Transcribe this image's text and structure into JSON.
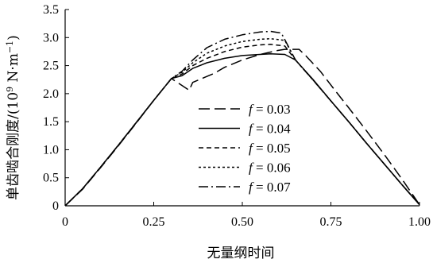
{
  "chart_data": {
    "type": "line",
    "title": "",
    "xlabel": "无量纲时间",
    "ylabel_main": "单齿啮合刚度/(10",
    "ylabel_exp": "9",
    "ylabel_unit": " N·m",
    "ylabel_unit_exp": "−1",
    "ylabel_close": ")",
    "xlim": [
      0,
      1
    ],
    "ylim": [
      0,
      3.5
    ],
    "x_ticks": [
      "0",
      "0.25",
      "0.50",
      "0.75",
      "1.00"
    ],
    "x_tick_values": [
      0,
      0.25,
      0.5,
      0.75,
      1.0
    ],
    "y_ticks": [
      "0",
      "0.5",
      "1.0",
      "1.5",
      "2.0",
      "2.5",
      "3.0",
      "3.5"
    ],
    "y_tick_values": [
      0,
      0.5,
      1.0,
      1.5,
      2.0,
      2.5,
      3.0,
      3.5
    ],
    "grid": false,
    "legend_placement": "center",
    "series": [
      {
        "name": "f = 0.03",
        "legend_var": "f",
        "legend_rest": " = 0.03",
        "dash": "14,6",
        "points": [
          [
            0,
            0
          ],
          [
            0.05,
            0.3
          ],
          [
            0.1,
            0.68
          ],
          [
            0.15,
            1.07
          ],
          [
            0.2,
            1.47
          ],
          [
            0.25,
            1.88
          ],
          [
            0.3,
            2.27
          ],
          [
            0.35,
            2.06
          ],
          [
            0.36,
            2.2
          ],
          [
            0.39,
            2.28
          ],
          [
            0.42,
            2.36
          ],
          [
            0.45,
            2.47
          ],
          [
            0.5,
            2.6
          ],
          [
            0.55,
            2.7
          ],
          [
            0.6,
            2.77
          ],
          [
            0.62,
            2.79
          ],
          [
            0.66,
            2.79
          ],
          [
            0.68,
            2.67
          ],
          [
            0.72,
            2.4
          ],
          [
            0.76,
            2.07
          ],
          [
            0.8,
            1.75
          ],
          [
            0.85,
            1.34
          ],
          [
            0.9,
            0.92
          ],
          [
            0.95,
            0.48
          ],
          [
            1.0,
            0.02
          ]
        ]
      },
      {
        "name": "f = 0.04",
        "legend_var": "f",
        "legend_rest": " = 0.04",
        "dash": "",
        "points": [
          [
            0,
            0
          ],
          [
            0.05,
            0.31
          ],
          [
            0.1,
            0.69
          ],
          [
            0.15,
            1.08
          ],
          [
            0.2,
            1.48
          ],
          [
            0.25,
            1.88
          ],
          [
            0.3,
            2.27
          ],
          [
            0.33,
            2.32
          ],
          [
            0.36,
            2.45
          ],
          [
            0.4,
            2.55
          ],
          [
            0.45,
            2.63
          ],
          [
            0.5,
            2.68
          ],
          [
            0.55,
            2.7
          ],
          [
            0.58,
            2.71
          ],
          [
            0.62,
            2.7
          ],
          [
            0.65,
            2.6
          ],
          [
            0.7,
            2.25
          ],
          [
            0.75,
            1.87
          ],
          [
            0.8,
            1.5
          ],
          [
            0.85,
            1.12
          ],
          [
            0.9,
            0.75
          ],
          [
            0.95,
            0.38
          ],
          [
            1.0,
            0.02
          ]
        ]
      },
      {
        "name": "f = 0.05",
        "legend_var": "f",
        "legend_rest": " = 0.05",
        "dash": "6,4",
        "points": [
          [
            0,
            0
          ],
          [
            0.05,
            0.31
          ],
          [
            0.1,
            0.69
          ],
          [
            0.15,
            1.08
          ],
          [
            0.2,
            1.48
          ],
          [
            0.25,
            1.88
          ],
          [
            0.3,
            2.27
          ],
          [
            0.33,
            2.35
          ],
          [
            0.36,
            2.5
          ],
          [
            0.4,
            2.63
          ],
          [
            0.45,
            2.75
          ],
          [
            0.5,
            2.83
          ],
          [
            0.55,
            2.87
          ],
          [
            0.58,
            2.88
          ],
          [
            0.62,
            2.85
          ],
          [
            0.65,
            2.6
          ],
          [
            0.7,
            2.24
          ],
          [
            0.75,
            1.87
          ],
          [
            0.8,
            1.5
          ],
          [
            0.85,
            1.12
          ],
          [
            0.9,
            0.75
          ],
          [
            0.95,
            0.38
          ],
          [
            1.0,
            0.02
          ]
        ]
      },
      {
        "name": "f = 0.06",
        "legend_var": "f",
        "legend_rest": " = 0.06",
        "dash": "3,3",
        "points": [
          [
            0,
            0
          ],
          [
            0.05,
            0.31
          ],
          [
            0.1,
            0.69
          ],
          [
            0.15,
            1.08
          ],
          [
            0.2,
            1.48
          ],
          [
            0.25,
            1.88
          ],
          [
            0.3,
            2.27
          ],
          [
            0.33,
            2.38
          ],
          [
            0.36,
            2.55
          ],
          [
            0.4,
            2.72
          ],
          [
            0.45,
            2.85
          ],
          [
            0.5,
            2.93
          ],
          [
            0.55,
            2.97
          ],
          [
            0.58,
            2.98
          ],
          [
            0.62,
            2.95
          ],
          [
            0.65,
            2.6
          ],
          [
            0.7,
            2.24
          ],
          [
            0.75,
            1.87
          ],
          [
            0.8,
            1.5
          ],
          [
            0.85,
            1.12
          ],
          [
            0.9,
            0.75
          ],
          [
            0.95,
            0.38
          ],
          [
            1.0,
            0.02
          ]
        ]
      },
      {
        "name": "f = 0.07",
        "legend_var": "f",
        "legend_rest": " = 0.07",
        "dash": "12,4,2,4",
        "points": [
          [
            0,
            0
          ],
          [
            0.05,
            0.31
          ],
          [
            0.1,
            0.69
          ],
          [
            0.15,
            1.08
          ],
          [
            0.2,
            1.48
          ],
          [
            0.25,
            1.88
          ],
          [
            0.3,
            2.27
          ],
          [
            0.33,
            2.4
          ],
          [
            0.36,
            2.6
          ],
          [
            0.4,
            2.82
          ],
          [
            0.45,
            2.97
          ],
          [
            0.5,
            3.05
          ],
          [
            0.55,
            3.1
          ],
          [
            0.58,
            3.11
          ],
          [
            0.61,
            3.08
          ],
          [
            0.65,
            2.6
          ],
          [
            0.7,
            2.24
          ],
          [
            0.75,
            1.87
          ],
          [
            0.8,
            1.5
          ],
          [
            0.85,
            1.12
          ],
          [
            0.9,
            0.75
          ],
          [
            0.95,
            0.38
          ],
          [
            1.0,
            0.02
          ]
        ]
      }
    ]
  }
}
